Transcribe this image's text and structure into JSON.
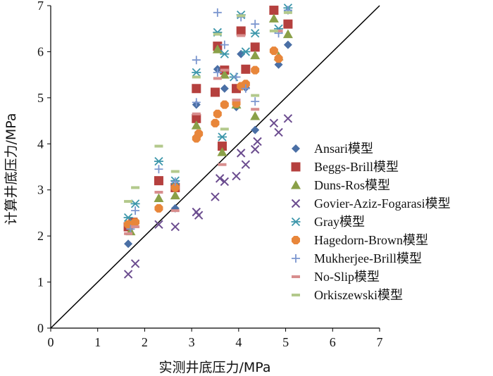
{
  "chart_data": {
    "type": "scatter",
    "title": "",
    "xlabel": "实测井底压力/MPa",
    "ylabel": "计算井底压力/MPa",
    "xlim": [
      0,
      7
    ],
    "ylim": [
      0,
      7
    ],
    "xticks": [
      "0",
      "1",
      "2",
      "3",
      "4",
      "5",
      "6",
      "7"
    ],
    "yticks": [
      "0",
      "1",
      "2",
      "3",
      "4",
      "5",
      "6",
      "7"
    ],
    "reference_line": {
      "name": "y=x",
      "x": [
        0,
        7
      ],
      "y": [
        0,
        7
      ]
    },
    "legend_position": "right",
    "series": [
      {
        "name": "Ansari模型",
        "marker": "diamond",
        "color": "#4a6fa5",
        "x": [
          1.65,
          2.65,
          3.1,
          3.55,
          3.7,
          3.95,
          4.05,
          4.15,
          4.35,
          4.85,
          5.05
        ],
        "y": [
          1.83,
          2.6,
          4.85,
          5.62,
          5.2,
          4.8,
          5.95,
          5.22,
          4.3,
          5.72,
          6.15
        ]
      },
      {
        "name": "Beggs-Brill模型",
        "marker": "square",
        "color": "#b5403e",
        "x": [
          1.65,
          1.75,
          2.3,
          2.65,
          3.1,
          3.1,
          3.5,
          3.55,
          3.65,
          3.7,
          3.95,
          4.05,
          4.15,
          4.35,
          4.75,
          5.05
        ],
        "y": [
          2.2,
          2.3,
          3.2,
          3.05,
          5.2,
          4.55,
          5.12,
          6.12,
          3.95,
          5.6,
          5.2,
          6.45,
          5.62,
          6.1,
          6.9,
          6.6
        ]
      },
      {
        "name": "Duns-Ros模型",
        "marker": "triangle",
        "color": "#8aa048",
        "x": [
          1.7,
          2.3,
          2.65,
          3.1,
          3.55,
          3.65,
          3.7,
          3.95,
          4.35,
          4.35,
          4.75,
          4.85,
          5.05
        ],
        "y": [
          2.1,
          2.82,
          2.88,
          4.4,
          6.05,
          3.82,
          5.5,
          4.85,
          5.92,
          4.6,
          6.72,
          5.9,
          6.38
        ]
      },
      {
        "name": "Govier-Aziz-Fogarasi模型",
        "marker": "x",
        "color": "#6b4c8f",
        "x": [
          1.65,
          1.8,
          2.3,
          2.65,
          3.1,
          3.15,
          3.5,
          3.6,
          3.7,
          3.95,
          4.05,
          4.15,
          4.35,
          4.4,
          4.75,
          4.85,
          5.05
        ],
        "y": [
          1.17,
          1.4,
          2.25,
          2.2,
          2.52,
          2.45,
          2.85,
          3.25,
          3.18,
          3.3,
          3.8,
          3.55,
          3.88,
          4.05,
          4.45,
          4.25,
          4.55
        ]
      },
      {
        "name": "Gray模型",
        "marker": "asterisk",
        "color": "#3e97ab",
        "x": [
          1.65,
          1.8,
          2.3,
          2.65,
          3.1,
          3.55,
          3.65,
          3.7,
          3.9,
          4.05,
          4.15,
          4.35,
          4.85,
          5.05
        ],
        "y": [
          2.4,
          2.7,
          3.62,
          3.2,
          5.55,
          6.42,
          4.15,
          5.95,
          5.45,
          6.8,
          6.0,
          6.4,
          6.5,
          6.95
        ]
      },
      {
        "name": "Hagedorn-Brown模型",
        "marker": "octagon",
        "color": "#e8863a",
        "x": [
          1.65,
          1.8,
          2.3,
          2.65,
          3.1,
          3.15,
          3.5,
          3.55,
          3.7,
          3.95,
          4.05,
          4.15,
          4.35,
          4.75,
          4.85
        ],
        "y": [
          2.25,
          2.3,
          2.6,
          3.05,
          4.12,
          4.22,
          4.45,
          4.65,
          4.85,
          4.88,
          5.25,
          5.3,
          5.6,
          6.02,
          5.85
        ]
      },
      {
        "name": "Mukherjee-Brill模型",
        "marker": "plus",
        "color": "#7b96cf",
        "x": [
          1.7,
          1.8,
          2.3,
          2.65,
          3.1,
          3.1,
          3.55,
          3.55,
          3.7,
          3.95,
          4.05,
          4.15,
          4.35,
          4.35,
          4.85,
          5.05
        ],
        "y": [
          2.15,
          2.55,
          3.45,
          3.18,
          5.82,
          4.9,
          6.85,
          5.55,
          6.15,
          5.45,
          6.75,
          5.2,
          6.6,
          4.92,
          6.4,
          6.9
        ]
      },
      {
        "name": "No-Slip模型",
        "marker": "dash",
        "color": "#d88e8e",
        "x": [
          1.65,
          1.8,
          2.3,
          2.65,
          3.1,
          3.55,
          3.65,
          3.7,
          3.95,
          4.05,
          4.35,
          4.85
        ],
        "y": [
          2.05,
          2.2,
          2.95,
          2.55,
          4.65,
          5.42,
          3.55,
          5.6,
          4.95,
          6.35,
          4.75,
          6.45
        ]
      },
      {
        "name": "Orkiszewski模型",
        "marker": "dash",
        "color": "#b3c98c",
        "x": [
          1.65,
          1.8,
          2.3,
          2.65,
          3.1,
          3.55,
          3.7,
          4.05,
          4.35,
          4.75,
          5.05
        ],
        "y": [
          2.75,
          3.05,
          3.95,
          3.4,
          5.45,
          6.38,
          4.32,
          6.78,
          5.05,
          6.45,
          6.85
        ]
      }
    ]
  }
}
